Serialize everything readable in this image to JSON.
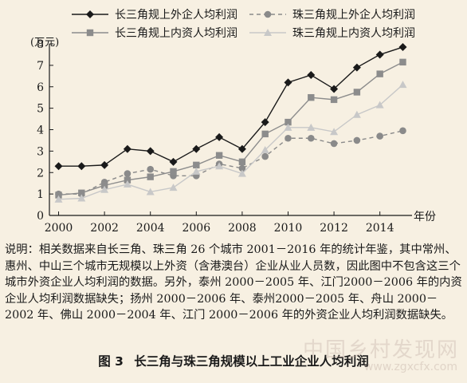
{
  "chart_data": {
    "type": "line",
    "x": [
      2000,
      2001,
      2002,
      2003,
      2004,
      2005,
      2006,
      2007,
      2008,
      2009,
      2010,
      2011,
      2012,
      2013,
      2014,
      2015
    ],
    "x_ticks": [
      "2000",
      "2002",
      "2004",
      "2006",
      "2008",
      "2010",
      "2012",
      "2014"
    ],
    "y_ticks": [
      "0",
      "1",
      "2",
      "3",
      "4",
      "5",
      "6",
      "7",
      "8"
    ],
    "xlabel": "年份",
    "ylabel": "(万元)",
    "ylim": [
      0,
      8
    ],
    "xlim": [
      1999.6,
      2015.4
    ],
    "legend_position": "top",
    "series": [
      {
        "name": "长三角规上外企人均利润",
        "style": "solid",
        "marker": "diamond",
        "color": "#1a1a1a",
        "values": [
          2.3,
          2.3,
          2.35,
          3.1,
          3.0,
          2.5,
          3.1,
          3.65,
          3.1,
          4.35,
          6.2,
          6.55,
          5.9,
          6.9,
          7.5,
          7.85
        ]
      },
      {
        "name": "珠三角规上外企人均利润",
        "style": "dashed",
        "marker": "circle",
        "color": "#8a8a8a",
        "values": [
          1.0,
          1.0,
          1.55,
          1.95,
          2.15,
          1.85,
          1.85,
          2.4,
          2.2,
          2.75,
          3.6,
          3.6,
          3.35,
          3.5,
          3.7,
          3.95
        ]
      },
      {
        "name": "长三角规上内资人均利润",
        "style": "solid",
        "marker": "square",
        "color": "#8c8c8c",
        "values": [
          0.95,
          1.05,
          1.4,
          1.65,
          1.8,
          2.05,
          2.35,
          2.8,
          2.5,
          3.8,
          4.35,
          5.5,
          5.4,
          5.75,
          6.6,
          7.15
        ]
      },
      {
        "name": "珠三角规上内资人均利润",
        "style": "solid",
        "marker": "triangle",
        "color": "#c8c8c8",
        "values": [
          0.75,
          0.8,
          1.2,
          1.45,
          1.1,
          1.3,
          2.05,
          2.3,
          1.95,
          3.05,
          4.1,
          4.1,
          3.9,
          4.7,
          5.15,
          6.1
        ]
      }
    ]
  },
  "note_text": "说明：相关数据来自长三角、珠三角 26 个城市 2001－2016 年的统计年鉴，其中常州、惠州、中山三个城市无规模以上外资（含港澳台）企业从业人员数，因此图中不包含这三个城市外资企业人均利润的数据。另外，泰州 2000－2005 年、江门2000－2006 年的内资企业人均利润数据缺失；扬州 2000－2006 年、泰州2000－2005 年、舟山 2000－2002 年、佛山 2000－2004 年、江门 2000－2006 年的外资企业人均利润数据缺失。",
  "caption": {
    "number": "图 3",
    "title": "长三角与珠三角规模以上工业企业人均利润"
  },
  "watermark": {
    "line1": "中国乡村发现网",
    "line2": "www.zgxcfx.com"
  }
}
